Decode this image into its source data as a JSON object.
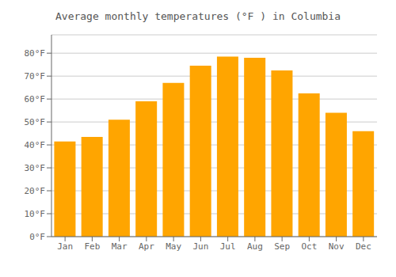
{
  "chart_data": {
    "type": "bar",
    "title": "Average monthly temperatures (°F ) in Columbia",
    "categories": [
      "Jan",
      "Feb",
      "Mar",
      "Apr",
      "May",
      "Jun",
      "Jul",
      "Aug",
      "Sep",
      "Oct",
      "Nov",
      "Dec"
    ],
    "values": [
      41.5,
      43.5,
      51.0,
      59.0,
      67.0,
      74.5,
      78.5,
      78.0,
      72.5,
      62.5,
      54.0,
      46.0
    ],
    "color": "#FFA500",
    "ylim": [
      0,
      88
    ],
    "yticks": [
      {
        "value": 0,
        "label": "0°F"
      },
      {
        "value": 10,
        "label": "10°F"
      },
      {
        "value": 20,
        "label": "20°F"
      },
      {
        "value": 30,
        "label": "30°F"
      },
      {
        "value": 40,
        "label": "40°F"
      },
      {
        "value": 50,
        "label": "50°F"
      },
      {
        "value": 60,
        "label": "60°F"
      },
      {
        "value": 70,
        "label": "70°F"
      },
      {
        "value": 80,
        "label": "80°F"
      }
    ],
    "grid": true
  }
}
